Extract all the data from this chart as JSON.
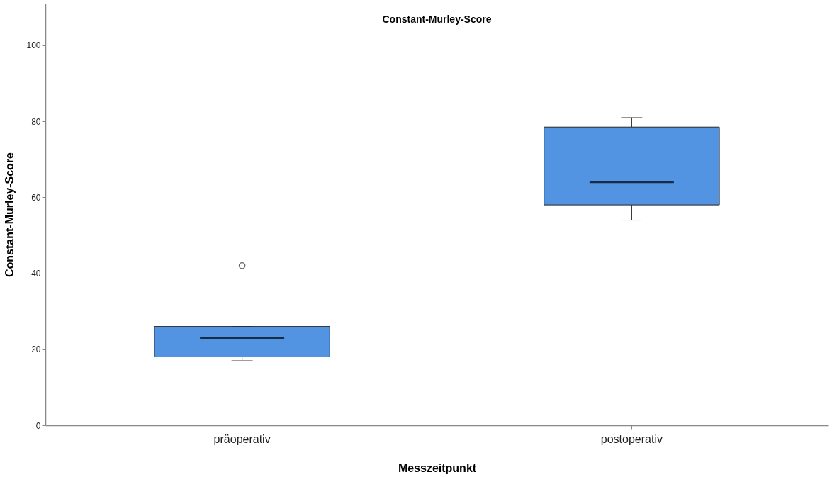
{
  "chart_data": {
    "type": "box",
    "title": "Constant-Murley-Score",
    "xlabel": "Messzeitpunkt",
    "ylabel": "Constant-Murley-Score",
    "categories": [
      "präoperativ",
      "postoperativ"
    ],
    "color": "#5294e2",
    "ylim": [
      0,
      111
    ],
    "yticks": [
      0,
      20,
      40,
      60,
      80,
      100
    ],
    "grid": false,
    "boxes": [
      {
        "low": 17,
        "q1": 18,
        "median": 23,
        "q3": 26,
        "high": 26,
        "outliers": [
          42
        ]
      },
      {
        "low": 54,
        "q1": 58,
        "median": 64,
        "q3": 78.5,
        "high": 81
      }
    ]
  }
}
